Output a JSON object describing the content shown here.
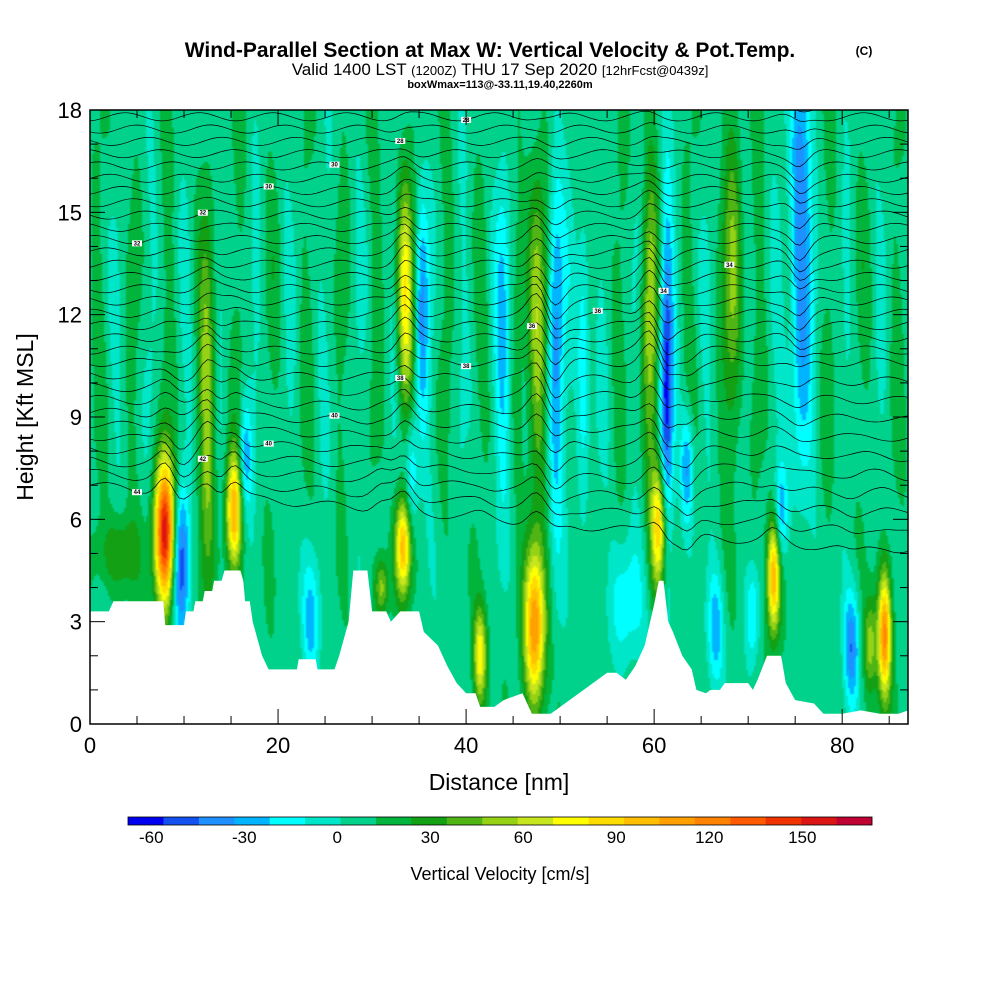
{
  "chart_data": {
    "type": "heatmap",
    "title": "Wind-Parallel Section at Max W: Vertical Velocity & Pot.Temp.",
    "title_units": "(C)",
    "subtitle_parts": [
      "Valid 1400 LST",
      "(1200Z)",
      "THU 17 Sep 2020",
      "[12hrFcst@0439z]"
    ],
    "subsubtitle": "boxWmax=113@-33.11,19.40,2260m",
    "xlabel": "Distance [nm]",
    "ylabel": "Height [Kft MSL]",
    "xlim": [
      0,
      87
    ],
    "ylim": [
      0,
      18
    ],
    "xticks": [
      "0",
      "20",
      "40",
      "60",
      "80"
    ],
    "yticks": [
      "0",
      "3",
      "6",
      "9",
      "12",
      "15",
      "18"
    ],
    "colorbar_label": "Vertical Velocity [cm/s]",
    "colorbar_ticks": [
      "-60",
      "-30",
      "0",
      "30",
      "60",
      "90",
      "120",
      "150"
    ],
    "colorbar_range": [
      -67.5,
      172.5
    ],
    "colorbar_colors": [
      "#0000f0",
      "#1450f0",
      "#1e90ff",
      "#00b4ff",
      "#00ffff",
      "#00e6c8",
      "#00d28c",
      "#00b43c",
      "#14a014",
      "#50b414",
      "#96d214",
      "#c8e61e",
      "#ffff00",
      "#ffdc00",
      "#ffbe00",
      "#ffa000",
      "#ff8200",
      "#ff5a00",
      "#f03200",
      "#dc1414",
      "#be0032"
    ],
    "terrain_kft": [
      [
        0,
        3.3
      ],
      [
        2,
        3.3
      ],
      [
        2.5,
        3.6
      ],
      [
        7.8,
        3.6
      ],
      [
        8,
        2.9
      ],
      [
        10,
        2.9
      ],
      [
        10.2,
        3.3
      ],
      [
        11,
        3.3
      ],
      [
        11.2,
        3.6
      ],
      [
        12,
        3.6
      ],
      [
        12.2,
        3.9
      ],
      [
        13,
        3.9
      ],
      [
        13.2,
        4.2
      ],
      [
        14,
        4.2
      ],
      [
        14.3,
        4.5
      ],
      [
        16,
        4.5
      ],
      [
        16.3,
        4.2
      ],
      [
        16.5,
        3.6
      ],
      [
        17,
        3.6
      ],
      [
        17.3,
        3.0
      ],
      [
        17.8,
        2.5
      ],
      [
        18.3,
        2.0
      ],
      [
        19,
        1.6
      ],
      [
        22,
        1.6
      ],
      [
        22.2,
        1.9
      ],
      [
        24,
        1.9
      ],
      [
        24.2,
        1.6
      ],
      [
        26,
        1.6
      ],
      [
        26.5,
        2.0
      ],
      [
        27,
        2.5
      ],
      [
        27.5,
        3.0
      ],
      [
        28,
        4.5
      ],
      [
        29.5,
        4.5
      ],
      [
        30,
        3.3
      ],
      [
        31.5,
        3.3
      ],
      [
        32,
        3.0
      ],
      [
        33,
        3.3
      ],
      [
        35,
        3.3
      ],
      [
        35.5,
        2.7
      ],
      [
        37,
        2.3
      ],
      [
        38,
        1.7
      ],
      [
        39,
        1.2
      ],
      [
        40,
        0.9
      ],
      [
        41,
        0.9
      ],
      [
        41.5,
        0.5
      ],
      [
        43,
        0.5
      ],
      [
        44,
        0.7
      ],
      [
        46,
        0.9
      ],
      [
        47,
        0.3
      ],
      [
        49,
        0.3
      ],
      [
        51,
        0.7
      ],
      [
        53,
        1.1
      ],
      [
        55,
        1.5
      ],
      [
        56,
        1.5
      ],
      [
        57,
        1.3
      ],
      [
        58,
        1.7
      ],
      [
        59,
        2.3
      ],
      [
        60,
        3.5
      ],
      [
        60.5,
        4.2
      ],
      [
        61,
        4.2
      ],
      [
        61.5,
        3.0
      ],
      [
        62,
        2.7
      ],
      [
        63,
        2.0
      ],
      [
        64,
        1.6
      ],
      [
        64.5,
        1.0
      ],
      [
        65.5,
        0.9
      ],
      [
        66,
        1.0
      ],
      [
        67,
        1.0
      ],
      [
        67.5,
        1.2
      ],
      [
        69,
        1.2
      ],
      [
        70,
        1.2
      ],
      [
        70.5,
        1.0
      ],
      [
        71,
        1.3
      ],
      [
        72,
        2.0
      ],
      [
        73.5,
        2.0
      ],
      [
        74,
        1.2
      ],
      [
        75,
        0.7
      ],
      [
        77,
        0.6
      ],
      [
        78,
        0.3
      ],
      [
        80,
        0.3
      ],
      [
        82,
        0.4
      ],
      [
        84,
        0.3
      ],
      [
        86,
        0.3
      ],
      [
        87,
        0.4
      ]
    ],
    "updrafts": [
      {
        "x": 8,
        "z": 5.6,
        "w": 150,
        "sx": 0.8,
        "sz": 1.5
      },
      {
        "x": 9.6,
        "z": 4.8,
        "w": -65,
        "sx": 0.7,
        "sz": 1.6
      },
      {
        "x": 15.3,
        "z": 6.2,
        "w": 95,
        "sx": 0.6,
        "sz": 1.2
      },
      {
        "x": 16.5,
        "z": 7.8,
        "w": -40,
        "sx": 0.5,
        "sz": 1.2
      },
      {
        "x": 12.5,
        "z": 9,
        "w": 45,
        "sx": 0.6,
        "sz": 3.5
      },
      {
        "x": 33.3,
        "z": 5.2,
        "w": 90,
        "sx": 0.6,
        "sz": 1.0
      },
      {
        "x": 34.2,
        "z": 7.3,
        "w": -35,
        "sx": 0.5,
        "sz": 1.3
      },
      {
        "x": 33.5,
        "z": 12.5,
        "w": 65,
        "sx": 0.6,
        "sz": 2.5
      },
      {
        "x": 35.3,
        "z": 12,
        "w": -40,
        "sx": 0.5,
        "sz": 2.5
      },
      {
        "x": 31,
        "z": 4,
        "w": 45,
        "sx": 0.5,
        "sz": 0.6
      },
      {
        "x": 47.3,
        "z": 2.8,
        "w": 105,
        "sx": 0.8,
        "sz": 1.6
      },
      {
        "x": 41.5,
        "z": 2,
        "w": 70,
        "sx": 0.5,
        "sz": 1.0
      },
      {
        "x": 47.5,
        "z": 11.5,
        "w": 55,
        "sx": 0.7,
        "sz": 3.5
      },
      {
        "x": 49.5,
        "z": 11,
        "w": -50,
        "sx": 0.6,
        "sz": 4.0
      },
      {
        "x": 44,
        "z": 11,
        "w": -30,
        "sx": 0.6,
        "sz": 3.5
      },
      {
        "x": 52.5,
        "z": 11,
        "w": -35,
        "sx": 0.5,
        "sz": 3.0
      },
      {
        "x": 60.5,
        "z": 5.8,
        "w": 85,
        "sx": 0.6,
        "sz": 1.3
      },
      {
        "x": 61.3,
        "z": 10,
        "w": -65,
        "sx": 0.5,
        "sz": 3.5
      },
      {
        "x": 59.5,
        "z": 12,
        "w": 45,
        "sx": 0.6,
        "sz": 3.0
      },
      {
        "x": 63.5,
        "z": 7.5,
        "w": -45,
        "sx": 0.5,
        "sz": 1.2
      },
      {
        "x": 66.5,
        "z": 2.8,
        "w": -40,
        "sx": 0.6,
        "sz": 1.2
      },
      {
        "x": 72.7,
        "z": 4.3,
        "w": 100,
        "sx": 0.5,
        "sz": 1.2
      },
      {
        "x": 73.5,
        "z": 6.2,
        "w": -40,
        "sx": 0.5,
        "sz": 1.0
      },
      {
        "x": 75.5,
        "z": 14,
        "w": -55,
        "sx": 0.8,
        "sz": 4.5
      },
      {
        "x": 70.5,
        "z": 3.2,
        "w": -30,
        "sx": 0.5,
        "sz": 1.0
      },
      {
        "x": 84.5,
        "z": 2.6,
        "w": 110,
        "sx": 0.5,
        "sz": 1.3
      },
      {
        "x": 83,
        "z": 2.3,
        "w": 45,
        "sx": 0.5,
        "sz": 1.0
      },
      {
        "x": 81,
        "z": 2.3,
        "w": -50,
        "sx": 0.6,
        "sz": 1.2
      },
      {
        "x": 23.5,
        "z": 3,
        "w": -35,
        "sx": 0.7,
        "sz": 1.3
      },
      {
        "x": 57,
        "z": 3.5,
        "w": -25,
        "sx": 1.5,
        "sz": 1.3
      },
      {
        "x": 3,
        "z": 5,
        "w": 30,
        "sx": 1.5,
        "sz": 0.8
      },
      {
        "x": 68.5,
        "z": 13,
        "w": 40,
        "sx": 0.7,
        "sz": 3.5
      }
    ],
    "theta_contour_labels": [
      "44",
      "42",
      "40",
      "40",
      "38",
      "38",
      "36",
      "36",
      "34",
      "34",
      "32",
      "32",
      "30",
      "30",
      "28",
      "28",
      "26",
      "26",
      "24",
      "22",
      "22"
    ]
  }
}
